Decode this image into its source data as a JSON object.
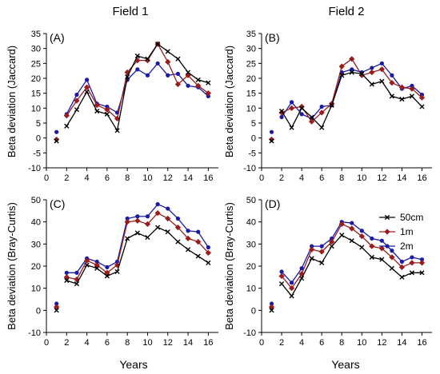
{
  "column_titles": [
    "Field 1",
    "Field 2"
  ],
  "x_axis_label": "Years",
  "legend": [
    {
      "name": "50cm",
      "color": "#000000",
      "marker": "x"
    },
    {
      "name": "1m",
      "color": "#9b1c1c",
      "marker": "diamond"
    },
    {
      "name": "2m",
      "color": "#1a1aa6",
      "marker": "circle"
    }
  ],
  "chart_data": [
    {
      "panel": "(A)",
      "type": "line",
      "column": "Field 1",
      "ylabel": "Beta deviation (Jaccard)",
      "xlim": [
        0,
        17
      ],
      "ylim": [
        -10,
        35
      ],
      "xticks": [
        0,
        2,
        4,
        6,
        8,
        10,
        12,
        14,
        16
      ],
      "yticks": [
        -10,
        -5,
        0,
        5,
        10,
        15,
        20,
        25,
        30,
        35
      ],
      "x": [
        1,
        2,
        3,
        4,
        5,
        6,
        7,
        8,
        9,
        10,
        11,
        12,
        13,
        14,
        15,
        16
      ],
      "series": [
        {
          "name": "50cm",
          "values": [
            -1,
            4,
            9.5,
            15.5,
            9,
            8,
            2.5,
            20.5,
            27.5,
            26.5,
            31.5,
            29,
            26.5,
            22,
            19.5,
            18.5
          ]
        },
        {
          "name": "1m",
          "values": [
            -0.5,
            7.5,
            12.5,
            17,
            11,
            9.5,
            6.5,
            22,
            26,
            26,
            31.5,
            25.5,
            18,
            21,
            17.5,
            15
          ]
        },
        {
          "name": "2m",
          "values": [
            2,
            8,
            14.5,
            19.5,
            11.5,
            10.5,
            8.5,
            19.5,
            23,
            21,
            25,
            21,
            21.5,
            17.5,
            17,
            14
          ]
        }
      ]
    },
    {
      "panel": "(B)",
      "type": "line",
      "column": "Field 2",
      "ylabel": "Beta deviation (Jaccard)",
      "xlim": [
        0,
        17
      ],
      "ylim": [
        -10,
        35
      ],
      "xticks": [
        0,
        2,
        4,
        6,
        8,
        10,
        12,
        14,
        16
      ],
      "yticks": [
        -10,
        -5,
        0,
        5,
        10,
        15,
        20,
        25,
        30,
        35
      ],
      "x": [
        1,
        2,
        3,
        4,
        5,
        6,
        7,
        8,
        9,
        10,
        11,
        12,
        13,
        14,
        15,
        16
      ],
      "series": [
        {
          "name": "50cm",
          "values": [
            -1,
            9,
            3.5,
            10,
            7,
            3.5,
            11,
            21,
            22,
            21.5,
            18,
            19,
            14,
            13,
            14,
            10.5
          ]
        },
        {
          "name": "1m",
          "values": [
            -0.5,
            8.5,
            10,
            10.5,
            5.5,
            8.5,
            11.5,
            24,
            26.5,
            21,
            22,
            23,
            18.5,
            17,
            16.5,
            13.5
          ]
        },
        {
          "name": "2m",
          "values": [
            2,
            7,
            12,
            8,
            6.5,
            10.5,
            11,
            22,
            23,
            22,
            23.5,
            25,
            21,
            16.5,
            17.5,
            14.5
          ]
        }
      ]
    },
    {
      "panel": "(C)",
      "type": "line",
      "column": "Field 1",
      "ylabel": "Beta deviation (Bray-Curtis)",
      "xlim": [
        0,
        17
      ],
      "ylim": [
        -10,
        50
      ],
      "xticks": [
        0,
        2,
        4,
        6,
        8,
        10,
        12,
        14,
        16
      ],
      "yticks": [
        -10,
        0,
        10,
        20,
        30,
        40,
        50
      ],
      "x": [
        1,
        2,
        3,
        4,
        5,
        6,
        7,
        8,
        9,
        10,
        11,
        12,
        13,
        14,
        15,
        16
      ],
      "series": [
        {
          "name": "50cm",
          "values": [
            0,
            13.5,
            12,
            20.5,
            19,
            15.5,
            17.5,
            32.5,
            35,
            33,
            37.5,
            35.5,
            31,
            27.5,
            24.5,
            21.5
          ]
        },
        {
          "name": "1m",
          "values": [
            1.5,
            15,
            14,
            22.5,
            20.5,
            17,
            20.5,
            40,
            40.5,
            39,
            44,
            41.5,
            37.5,
            32.5,
            31,
            26
          ]
        },
        {
          "name": "2m",
          "values": [
            3,
            17,
            17,
            23.5,
            22,
            19.5,
            22,
            41.5,
            42.5,
            42.5,
            48,
            46,
            41.5,
            36,
            35.5,
            28.5
          ]
        }
      ]
    },
    {
      "panel": "(D)",
      "type": "line",
      "column": "Field 2",
      "ylabel": "Beta deviation (Bray-Curtis)",
      "xlim": [
        0,
        17
      ],
      "ylim": [
        -10,
        50
      ],
      "xticks": [
        0,
        2,
        4,
        6,
        8,
        10,
        12,
        14,
        16
      ],
      "yticks": [
        -10,
        0,
        10,
        20,
        30,
        40,
        50
      ],
      "x": [
        1,
        2,
        3,
        4,
        5,
        6,
        7,
        8,
        9,
        10,
        11,
        12,
        13,
        14,
        15,
        16
      ],
      "series": [
        {
          "name": "50cm",
          "values": [
            0,
            12,
            6.5,
            14.5,
            23.5,
            21.5,
            29,
            34,
            31.5,
            28.5,
            24,
            23,
            19,
            15,
            17,
            17
          ]
        },
        {
          "name": "1m",
          "values": [
            1.5,
            15.5,
            10,
            16.5,
            27.5,
            26.5,
            31,
            39,
            37,
            33.5,
            29,
            28,
            24,
            19.5,
            21.5,
            21.5
          ]
        },
        {
          "name": "2m",
          "values": [
            3,
            17.5,
            12.5,
            19,
            29,
            29,
            32.5,
            40,
            39.5,
            36,
            32.5,
            31.5,
            27,
            22,
            24,
            23
          ]
        }
      ]
    }
  ]
}
